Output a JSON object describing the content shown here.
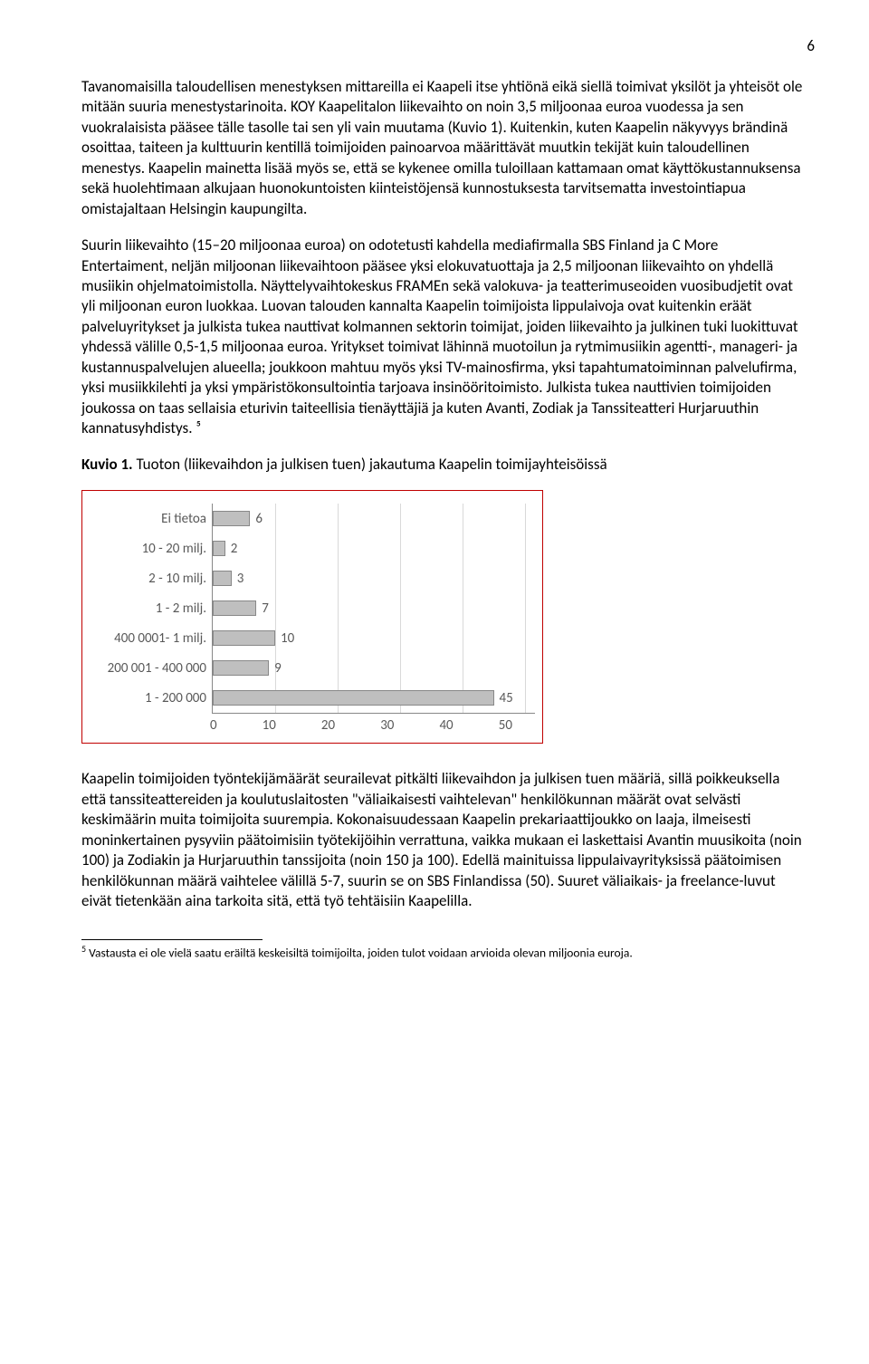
{
  "page_number": "6",
  "paragraphs": {
    "p1": "Tavanomaisilla taloudellisen menestyksen mittareilla ei Kaapeli itse yhtiönä eikä siellä toimivat yksilöt ja yhteisöt ole mitään suuria menestystarinoita. KOY Kaapelitalon liikevaihto on noin 3,5 miljoonaa euroa vuodessa ja sen vuokralaisista pääsee tälle tasolle tai sen yli vain muutama (Kuvio 1). Kuitenkin, kuten Kaapelin näkyvyys brändinä osoittaa, taiteen ja kulttuurin kentillä toimijoiden painoarvoa määrittävät muutkin tekijät kuin taloudellinen menestys. Kaapelin mainetta lisää myös se, että se kykenee omilla tuloillaan kattamaan omat käyttökustannuksensa sekä huolehtimaan alkujaan huonokuntoisten kiinteistöjensä kunnostuksesta tarvitsematta investointiapua omistajaltaan Helsingin kaupungilta.",
    "p2": "Suurin liikevaihto (15–20 miljoonaa euroa) on odotetusti kahdella mediafirmalla SBS Finland ja C More Entertaiment, neljän miljoonan liikevaihtoon pääsee yksi elokuvatuottaja ja 2,5 miljoonan liikevaihto on yhdellä musiikin ohjelmatoimistolla. Näyttelyvaihtokeskus FRAMEn sekä valokuva- ja teatterimuseoiden vuosibudjetit ovat yli miljoonan euron luokkaa. Luovan talouden kannalta Kaapelin toimijoista lippulaivoja ovat kuitenkin eräät palveluyritykset ja julkista tukea nauttivat kolmannen sektorin toimijat, joiden liikevaihto ja julkinen tuki luokittuvat yhdessä välille 0,5-1,5 miljoonaa euroa. Yritykset toimivat lähinnä muotoilun ja rytmimusiikin agentti-, manageri- ja kustannuspalvelujen alueella; joukkoon mahtuu myös yksi TV-mainosfirma, yksi tapahtumatoiminnan palvelufirma, yksi musiikkilehti ja yksi ympäristökonsultointia tarjoava insinööritoimisto. Julkista tukea nauttivien toimijoiden joukossa on taas sellaisia eturivin taiteellisia tienäyttäjiä ja kuten Avanti, Zodiak ja Tanssiteatteri Hurjaruuthin kannatusyhdistys. ⁵",
    "p3": "Kaapelin toimijoiden työntekijämäärät seurailevat pitkälti liikevaihdon ja julkisen tuen määriä, sillä poikkeuksella että tanssiteattereiden ja koulutuslaitosten \"väliaikaisesti vaihtelevan\" henkilökunnan määrät ovat selvästi keskimäärin muita toimijoita suurempia. Kokonaisuudessaan Kaapelin prekariaattijoukko on laaja, ilmeisesti moninkertainen pysyviin päätoimisiin työtekijöihin verrattuna, vaikka mukaan ei laskettaisi Avantin muusikoita (noin 100) ja Zodiakin ja Hurjaruuthin tanssijoita (noin 150 ja 100). Edellä mainituissa lippulaivayrityksissä päätoimisen henkilökunnan määrä vaihtelee välillä 5-7, suurin se on SBS Finlandissa (50). Suuret väliaikais- ja freelance-luvut eivät tietenkään aina tarkoita sitä, että työ tehtäisiin Kaapelilla."
  },
  "chart_title": {
    "bold": "Kuvio 1.",
    "rest": " Tuoton (liikevaihdon ja julkisen tuen) jakautuma Kaapelin toimijayhteisöissä"
  },
  "chart": {
    "type": "bar-horizontal",
    "x_max": 50,
    "x_ticks": [
      0,
      10,
      20,
      30,
      40,
      50
    ],
    "bar_color": "#bfbfbf",
    "bar_border": "#888888",
    "grid_color": "#d9d9d9",
    "axis_color": "#888888",
    "text_color": "#595959",
    "border_color": "#c00000",
    "categories": [
      {
        "label": "Ei tietoa",
        "value": 6
      },
      {
        "label": "10 - 20 milj.",
        "value": 2
      },
      {
        "label": "2 - 10 milj.",
        "value": 3
      },
      {
        "label": "1 - 2 milj.",
        "value": 7
      },
      {
        "label": "400 0001- 1 milj.",
        "value": 10
      },
      {
        "label": "200 001 - 400 000",
        "value": 9
      },
      {
        "label": "1 - 200 000",
        "value": 45
      }
    ]
  },
  "footnote": {
    "marker": "5",
    "text": " Vastausta ei ole vielä saatu eräiltä keskeisiltä toimijoilta, joiden tulot voidaan arvioida olevan miljoonia euroja."
  }
}
